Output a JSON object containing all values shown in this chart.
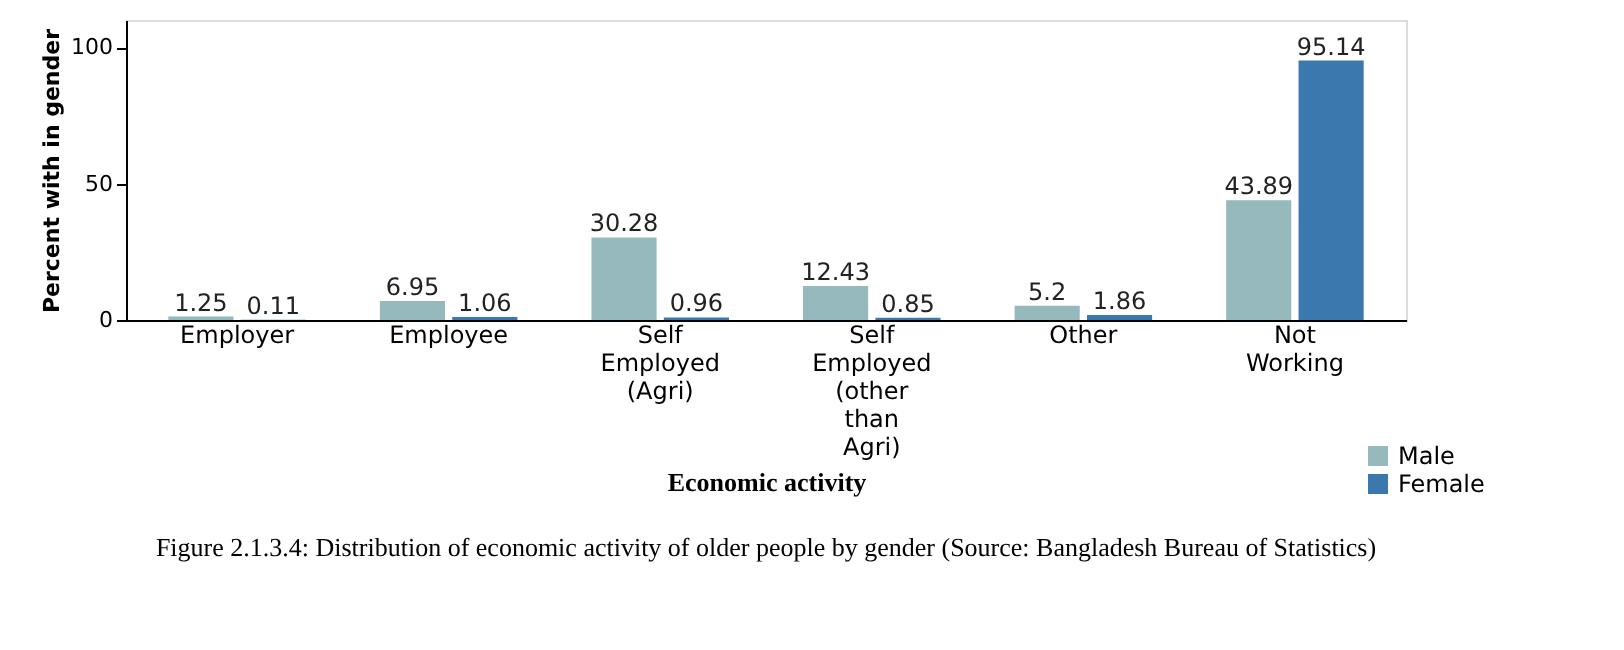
{
  "chart_data": {
    "type": "bar",
    "categories": [
      "Employer",
      "Employee",
      "Self Employed (Agri)",
      "Self Employed (other than Agri)",
      "Other",
      "Not Working"
    ],
    "series": [
      {
        "name": "Male",
        "color": "#95b9bd",
        "values": [
          1.25,
          6.95,
          30.28,
          12.43,
          5.2,
          43.89
        ]
      },
      {
        "name": "Female",
        "color": "#3a78ad",
        "values": [
          0.11,
          1.06,
          0.96,
          0.85,
          1.86,
          95.14
        ]
      }
    ],
    "xlabel": "Economic activity",
    "ylabel": "Percent with in gender",
    "ylim": [
      0,
      110
    ],
    "yticks": [
      0,
      50,
      100
    ],
    "data_labels": true,
    "grid": false,
    "legend": "bottom right",
    "annotations": [
      "Figure 2.1.3.4:  Distribution of economic activity of older people by gender (Source: Bangladesh Bureau of Statistics)"
    ]
  }
}
